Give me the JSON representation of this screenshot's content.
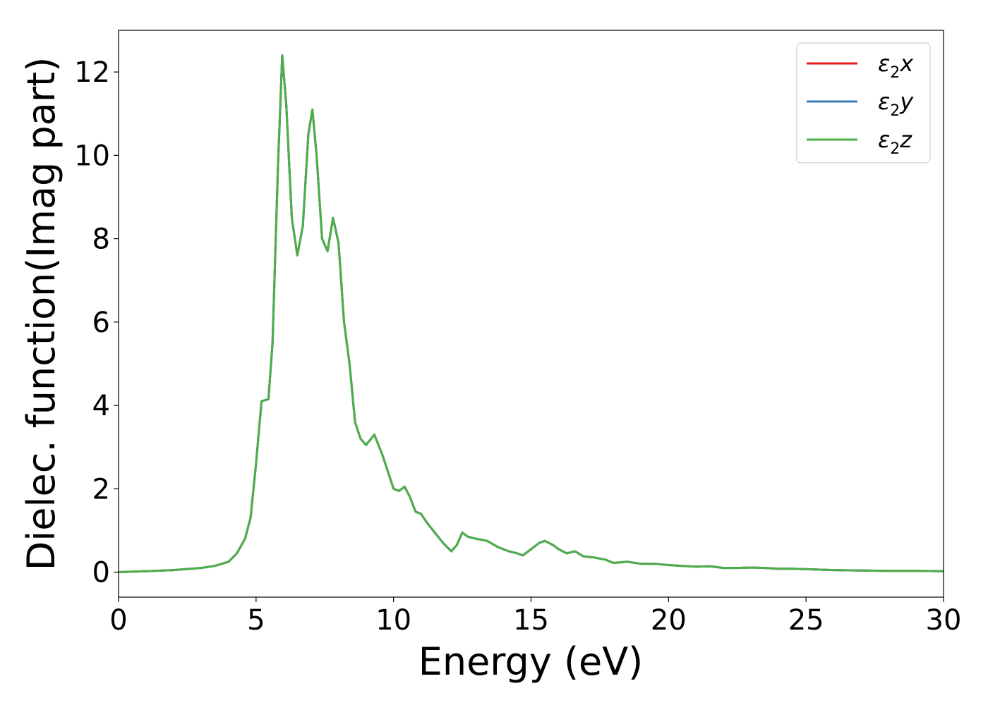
{
  "chart_data": {
    "type": "line",
    "xlabel": "Energy (eV)",
    "ylabel": "Dielec. function(Imag part)",
    "xlim": [
      0,
      30
    ],
    "ylim": [
      -0.6,
      13.0
    ],
    "xticks": [
      0,
      5,
      10,
      15,
      20,
      25,
      30
    ],
    "yticks": [
      0,
      2,
      4,
      6,
      8,
      10,
      12
    ],
    "grid": false,
    "legend_position": "top-right",
    "x": [
      0,
      1,
      2,
      3,
      3.5,
      4.0,
      4.3,
      4.6,
      4.8,
      5.0,
      5.2,
      5.45,
      5.6,
      5.8,
      5.95,
      6.1,
      6.3,
      6.5,
      6.7,
      6.9,
      7.05,
      7.2,
      7.4,
      7.6,
      7.8,
      8.0,
      8.2,
      8.4,
      8.6,
      8.8,
      9.0,
      9.3,
      9.6,
      10.0,
      10.2,
      10.4,
      10.6,
      10.8,
      11.0,
      11.2,
      11.5,
      11.8,
      12.1,
      12.3,
      12.5,
      12.7,
      13.0,
      13.4,
      13.8,
      14.2,
      14.5,
      14.7,
      15.0,
      15.3,
      15.5,
      15.8,
      16.0,
      16.3,
      16.6,
      16.9,
      17.3,
      17.7,
      18.0,
      18.5,
      19.0,
      19.5,
      20.0,
      20.5,
      21.0,
      21.5,
      22.0,
      22.5,
      23.0,
      23.5,
      24.0,
      24.5,
      25.0,
      25.5,
      26.0,
      27.0,
      28.0,
      29.0,
      30.0
    ],
    "series": [
      {
        "name": "ε2x",
        "color": "#e41a1c",
        "y": [
          0,
          0.02,
          0.05,
          0.1,
          0.15,
          0.25,
          0.45,
          0.8,
          1.3,
          2.6,
          4.1,
          4.15,
          5.5,
          9.8,
          12.4,
          11.2,
          8.5,
          7.6,
          8.3,
          10.5,
          11.1,
          10.0,
          8.0,
          7.7,
          8.5,
          7.9,
          6.0,
          5.0,
          3.6,
          3.2,
          3.05,
          3.3,
          2.8,
          2.0,
          1.95,
          2.05,
          1.8,
          1.45,
          1.4,
          1.2,
          0.95,
          0.7,
          0.5,
          0.65,
          0.95,
          0.85,
          0.8,
          0.75,
          0.6,
          0.5,
          0.45,
          0.4,
          0.55,
          0.7,
          0.75,
          0.65,
          0.55,
          0.45,
          0.5,
          0.38,
          0.35,
          0.3,
          0.22,
          0.25,
          0.2,
          0.2,
          0.17,
          0.15,
          0.13,
          0.14,
          0.1,
          0.1,
          0.11,
          0.1,
          0.08,
          0.08,
          0.07,
          0.06,
          0.05,
          0.04,
          0.03,
          0.03,
          0.02
        ]
      },
      {
        "name": "ε2y",
        "color": "#377eb8",
        "y": [
          0,
          0.02,
          0.05,
          0.1,
          0.15,
          0.25,
          0.45,
          0.8,
          1.3,
          2.6,
          4.1,
          4.15,
          5.5,
          9.8,
          12.4,
          11.2,
          8.5,
          7.6,
          8.3,
          10.5,
          11.1,
          10.0,
          8.0,
          7.7,
          8.5,
          7.9,
          6.0,
          5.0,
          3.6,
          3.2,
          3.05,
          3.3,
          2.8,
          2.0,
          1.95,
          2.05,
          1.8,
          1.45,
          1.4,
          1.2,
          0.95,
          0.7,
          0.5,
          0.65,
          0.95,
          0.85,
          0.8,
          0.75,
          0.6,
          0.5,
          0.45,
          0.4,
          0.55,
          0.7,
          0.75,
          0.65,
          0.55,
          0.45,
          0.5,
          0.38,
          0.35,
          0.3,
          0.22,
          0.25,
          0.2,
          0.2,
          0.17,
          0.15,
          0.13,
          0.14,
          0.1,
          0.1,
          0.11,
          0.1,
          0.08,
          0.08,
          0.07,
          0.06,
          0.05,
          0.04,
          0.03,
          0.03,
          0.02
        ]
      },
      {
        "name": "ε2z",
        "color": "#4daf4a",
        "y": [
          0,
          0.02,
          0.05,
          0.1,
          0.15,
          0.25,
          0.45,
          0.8,
          1.3,
          2.6,
          4.1,
          4.15,
          5.5,
          9.8,
          12.4,
          11.2,
          8.5,
          7.6,
          8.3,
          10.5,
          11.1,
          10.0,
          8.0,
          7.7,
          8.5,
          7.9,
          6.0,
          5.0,
          3.6,
          3.2,
          3.05,
          3.3,
          2.8,
          2.0,
          1.95,
          2.05,
          1.8,
          1.45,
          1.4,
          1.2,
          0.95,
          0.7,
          0.5,
          0.65,
          0.95,
          0.85,
          0.8,
          0.75,
          0.6,
          0.5,
          0.45,
          0.4,
          0.55,
          0.7,
          0.75,
          0.65,
          0.55,
          0.45,
          0.5,
          0.38,
          0.35,
          0.3,
          0.22,
          0.25,
          0.2,
          0.2,
          0.17,
          0.15,
          0.13,
          0.14,
          0.1,
          0.1,
          0.11,
          0.1,
          0.08,
          0.08,
          0.07,
          0.06,
          0.05,
          0.04,
          0.03,
          0.03,
          0.02
        ]
      }
    ]
  }
}
